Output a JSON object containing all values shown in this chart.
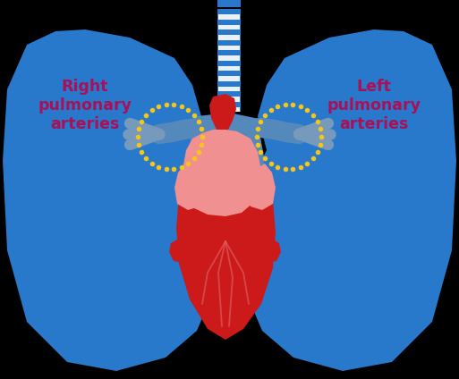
{
  "bg_color": "#000000",
  "lung_color": "#2878CC",
  "trachea_blue": "#2878CC",
  "trachea_white": "#ffffff",
  "heart_red": "#cc1a1a",
  "heart_pink": "#f09090",
  "heart_light_pink": "#f8b8b8",
  "artery_blue": "#5588bb",
  "artery_blue2": "#4477aa",
  "dot_circle_color": "#f5c518",
  "label_color": "#aa1055",
  "right_label": "Right\npulmonary\narteries",
  "left_label": "Left\npulmonary\narteries",
  "figsize": [
    5.13,
    4.24
  ],
  "dpi": 100
}
